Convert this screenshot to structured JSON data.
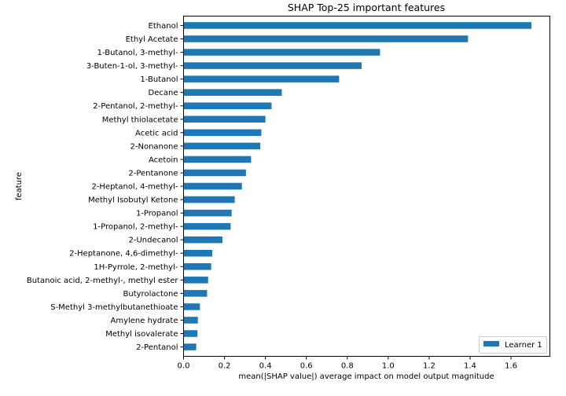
{
  "chart_data": {
    "type": "bar",
    "orientation": "horizontal",
    "title": "SHAP Top-25 important features",
    "xlabel": "mean(|SHAP value|) average impact on model output magnitude",
    "ylabel": "feature",
    "xlim": [
      0,
      1.79
    ],
    "xticks": [
      "0.0",
      "0.2",
      "0.4",
      "0.6",
      "0.8",
      "1.0",
      "1.2",
      "1.4",
      "1.6"
    ],
    "grid": false,
    "legend_position": "bottom-right",
    "bar_color": "#1f77b4",
    "categories": [
      "Ethanol",
      "Ethyl Acetate",
      "1-Butanol, 3-methyl-",
      "3-Buten-1-ol, 3-methyl-",
      "1-Butanol",
      "Decane",
      "2-Pentanol, 2-methyl-",
      "Methyl thiolacetate",
      "Acetic acid",
      "2-Nonanone",
      "Acetoin",
      "2-Pentanone",
      "2-Heptanol, 4-methyl-",
      "Methyl Isobutyl Ketone",
      "1-Propanol",
      "1-Propanol, 2-methyl-",
      "2-Undecanol",
      "2-Heptanone, 4,6-dimethyl-",
      "1H-Pyrrole, 2-methyl-",
      "Butanoic acid, 2-methyl-, methyl ester",
      "Butyrolactone",
      "S-Methyl 3-methylbutanethioate",
      "Amylene hydrate",
      "Methyl isovalerate",
      "2-Pentanol"
    ],
    "series": [
      {
        "name": "Learner 1",
        "values": [
          1.7,
          1.39,
          0.96,
          0.87,
          0.76,
          0.48,
          0.43,
          0.4,
          0.38,
          0.375,
          0.33,
          0.305,
          0.285,
          0.25,
          0.235,
          0.23,
          0.19,
          0.14,
          0.135,
          0.12,
          0.115,
          0.08,
          0.07,
          0.068,
          0.062
        ]
      }
    ]
  }
}
